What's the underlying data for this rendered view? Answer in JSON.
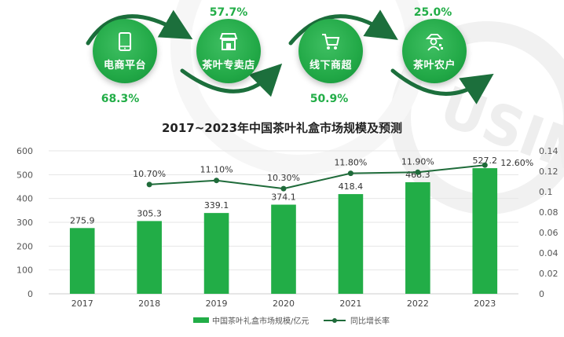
{
  "channels": [
    {
      "label": "电商平台",
      "share": "68.3%",
      "icon": "tablet-icon"
    },
    {
      "label": "茶叶专卖店",
      "share": "57.7%",
      "icon": "store-icon"
    },
    {
      "label": "线下商超",
      "share": "50.9%",
      "icon": "cart-icon"
    },
    {
      "label": "茶叶农户",
      "share": "25.0%",
      "icon": "farmer-icon"
    }
  ],
  "colors": {
    "bar": "#22ad47",
    "line": "#1f6b3a",
    "accent": "#22ad47",
    "dark_arrow": "#1c6f3c"
  },
  "chart_data": {
    "type": "bar",
    "title": "2017~2023年中国茶叶礼盒市场规模及预测",
    "categories": [
      "2017",
      "2018",
      "2019",
      "2020",
      "2021",
      "2022",
      "2023"
    ],
    "series": [
      {
        "name": "中国茶叶礼盒市场规模/亿元",
        "type": "bar",
        "axis": "left",
        "values": [
          275.9,
          305.3,
          339.1,
          374.1,
          418.4,
          468.3,
          527.2
        ],
        "labels": [
          "275.9",
          "305.3",
          "339.1",
          "374.1",
          "418.4",
          "468.3",
          "527.2"
        ]
      },
      {
        "name": "同比增长率",
        "type": "line",
        "axis": "right",
        "values": [
          null,
          0.107,
          0.111,
          0.103,
          0.118,
          0.119,
          0.126
        ],
        "labels": [
          "",
          "10.70%",
          "11.10%",
          "10.30%",
          "11.80%",
          "11.90%",
          "12.60%"
        ]
      }
    ],
    "y_left": {
      "min": 0,
      "max": 600,
      "ticks": [
        0,
        100,
        200,
        300,
        400,
        500,
        600
      ]
    },
    "y_right": {
      "min": 0,
      "max": 0.14,
      "ticks": [
        "0",
        "0.02",
        "0.04",
        "0.06",
        "0.08",
        "0.1",
        "0.12",
        "0.14"
      ]
    },
    "grid": true,
    "legend": "bottom-center"
  }
}
